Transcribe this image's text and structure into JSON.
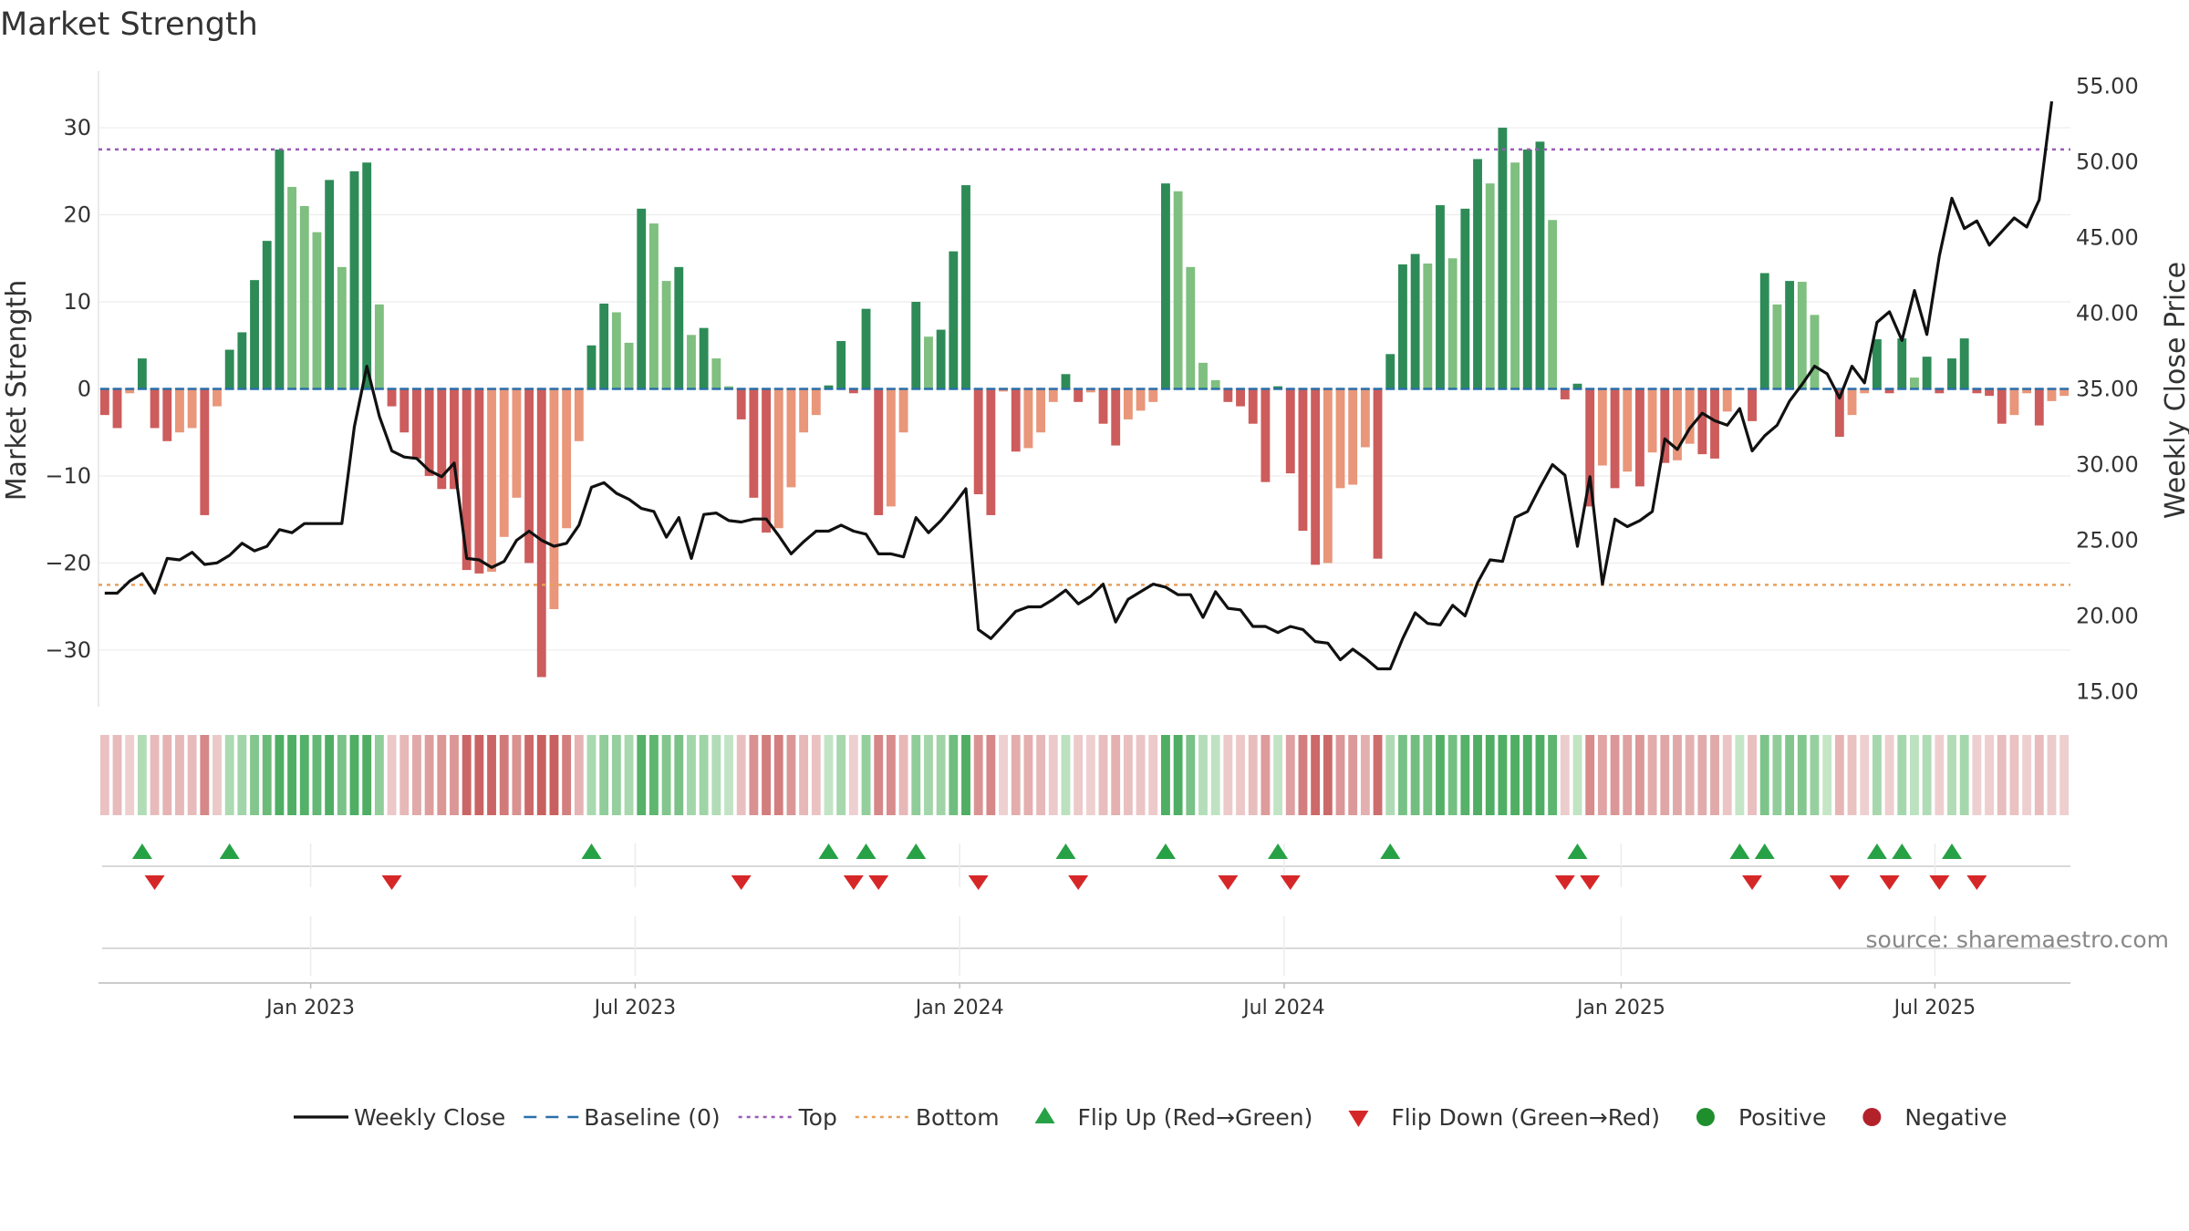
{
  "title": "Market Strength",
  "source": "source: sharemaestro.com",
  "chart_data": {
    "type": "bar",
    "ylabel_left": "Market Strength",
    "ylabel_right": "Weekly Close Price",
    "ylim_left": [
      -36.5,
      36.5
    ],
    "ylim_right": [
      14.0,
      56.0
    ],
    "yticks_left": [
      30,
      20,
      10,
      0,
      -10,
      -20,
      -30
    ],
    "yticks_right": [
      "55.00",
      "50.00",
      "45.00",
      "40.00",
      "35.00",
      "30.00",
      "25.00",
      "20.00",
      "15.00"
    ],
    "yticks_right_values": [
      55,
      50,
      45,
      40,
      35,
      30,
      25,
      20,
      15
    ],
    "x_start": "2022-09-05",
    "x_ticks": [
      {
        "label": "Jan 2023",
        "date": "2023-01-02"
      },
      {
        "label": "Jul 2023",
        "date": "2023-07-03"
      },
      {
        "label": "Jan 2024",
        "date": "2024-01-01"
      },
      {
        "label": "Jul 2024",
        "date": "2024-07-01"
      },
      {
        "label": "Jan 2025",
        "date": "2025-01-06"
      },
      {
        "label": "Jul 2025",
        "date": "2025-07-01"
      }
    ],
    "top_line": 27.5,
    "bottom_line": -22.5,
    "strength": [
      -3,
      -4.5,
      -0.5,
      3.5,
      -4.5,
      -6,
      -5,
      -4.5,
      -14.5,
      -2,
      4.5,
      6.5,
      12.5,
      17,
      27.5,
      23.2,
      21,
      18,
      24,
      14,
      25,
      26,
      9.7,
      -2,
      -5,
      -8,
      -10,
      -11.5,
      -11.5,
      -20.8,
      -21.2,
      -21,
      -17,
      -12.5,
      -20,
      -33.1,
      -25.3,
      -16,
      -6,
      5,
      9.8,
      8.8,
      5.3,
      20.7,
      19,
      12.4,
      14,
      6.2,
      7,
      3.5,
      0.3,
      -3.5,
      -12.5,
      -16.5,
      -16,
      -11.3,
      -5,
      -3,
      0.4,
      5.5,
      -0.5,
      9.2,
      -14.5,
      -13.5,
      -5,
      10,
      6,
      6.8,
      15.8,
      23.4,
      -12.1,
      -14.5,
      -0.3,
      -7.2,
      -6.8,
      -5,
      -1.5,
      1.7,
      -1.5,
      -0.4,
      -4,
      -6.5,
      -3.5,
      -2.5,
      -1.5,
      23.6,
      22.7,
      14,
      3,
      1,
      -1.5,
      -2,
      -4,
      -10.7,
      0.3,
      -9.7,
      -16.3,
      -20.2,
      -20,
      -11.4,
      -11,
      -6.7,
      -19.5,
      4,
      14.3,
      15.5,
      14.4,
      21.1,
      15,
      20.7,
      26.4,
      23.6,
      30,
      26,
      27.5,
      28.4,
      19.4,
      -1.2,
      0.6,
      -13.5,
      -8.8,
      -11.4,
      -9.5,
      -11.2,
      -7.3,
      -8.5,
      -8.2,
      -6.3,
      -7.5,
      -8,
      -2.6,
      0,
      -3.7,
      13.3,
      9.7,
      12.4,
      12.3,
      8.5,
      0,
      -5.5,
      -3,
      -0.5,
      5.7,
      -0.5,
      5.8,
      1.3,
      3.7,
      -0.5,
      3.5,
      5.8,
      -0.5,
      -0.8,
      -4,
      -3,
      -0.5,
      -4.2,
      -1.4,
      -0.8
    ],
    "weekly_close": [
      21.5,
      21.5,
      22.3,
      22.8,
      21.5,
      23.8,
      23.7,
      24.2,
      23.4,
      23.5,
      24,
      24.8,
      24.3,
      24.6,
      25.7,
      25.5,
      26.1,
      26.1,
      26.1,
      26.1,
      32.5,
      36.5,
      33.2,
      30.9,
      30.5,
      30.4,
      29.6,
      29.2,
      30.1,
      23.8,
      23.7,
      23.2,
      23.6,
      25,
      25.6,
      25,
      24.6,
      24.8,
      26,
      28.5,
      28.8,
      28.1,
      27.7,
      27.1,
      26.9,
      25.2,
      26.5,
      23.8,
      26.7,
      26.8,
      26.3,
      26.2,
      26.4,
      26.4,
      25.3,
      24.1,
      24.9,
      25.6,
      25.6,
      26,
      25.6,
      25.4,
      24.1,
      24.1,
      23.9,
      26.5,
      25.5,
      26.3,
      27.3,
      28.4,
      19.1,
      18.5,
      19.4,
      20.3,
      20.6,
      20.6,
      21.1,
      21.7,
      20.8,
      21.3,
      22.1,
      19.6,
      21.1,
      21.6,
      22.1,
      21.9,
      21.4,
      21.4,
      19.9,
      21.6,
      20.5,
      20.4,
      19.3,
      19.3,
      18.9,
      19.3,
      19.1,
      18.3,
      18.2,
      17.1,
      17.8,
      17.2,
      16.5,
      16.5,
      18.5,
      20.2,
      19.5,
      19.4,
      20.7,
      20,
      22.2,
      23.7,
      23.6,
      26.5,
      26.9,
      28.5,
      30,
      29.3,
      24.6,
      29.2,
      22.1,
      26.4,
      25.9,
      26.3,
      26.9,
      31.7,
      31,
      32.4,
      33.4,
      32.9,
      32.6,
      33.7,
      30.9,
      31.9,
      32.6,
      34.2,
      35.3,
      36.5,
      36,
      34.4,
      36.5,
      35.4,
      39.4,
      40.1,
      38.2,
      41.5,
      38.6,
      43.8,
      47.6,
      45.6,
      46.1,
      44.5,
      45.4,
      46.3,
      45.7,
      47.5,
      54
    ]
  },
  "legend": [
    {
      "label": "Weekly Close",
      "symbol": "line",
      "color": "#111111"
    },
    {
      "label": "Baseline (0)",
      "symbol": "dash",
      "color": "#2a6fa8"
    },
    {
      "label": "Top",
      "symbol": "dot",
      "color": "#9b59b6"
    },
    {
      "label": "Bottom",
      "symbol": "dot",
      "color": "#e8a05a"
    },
    {
      "label": "Flip Up (Red→Green)",
      "symbol": "triangle-up",
      "color": "#27a145"
    },
    {
      "label": "Flip Down (Green→Red)",
      "symbol": "triangle-down",
      "color": "#d62728"
    },
    {
      "label": "Positive",
      "symbol": "circle",
      "color": "#1f8f2e"
    },
    {
      "label": "Negative",
      "symbol": "circle",
      "color": "#b3212b"
    }
  ],
  "colors": {
    "strong_green": "#2e8b57",
    "light_green": "#7fbf7f",
    "strong_red": "#cd5c5c",
    "light_red": "#e9967a",
    "heat_green_dark": "#4fae63",
    "heat_green_light": "#c4e5c6",
    "heat_red_dark": "#c96060",
    "heat_red_light": "#efd2d2",
    "baseline": "#2a6fa8",
    "top": "#9b59b6",
    "bottom": "#e8a05a",
    "close_line": "#111111"
  }
}
